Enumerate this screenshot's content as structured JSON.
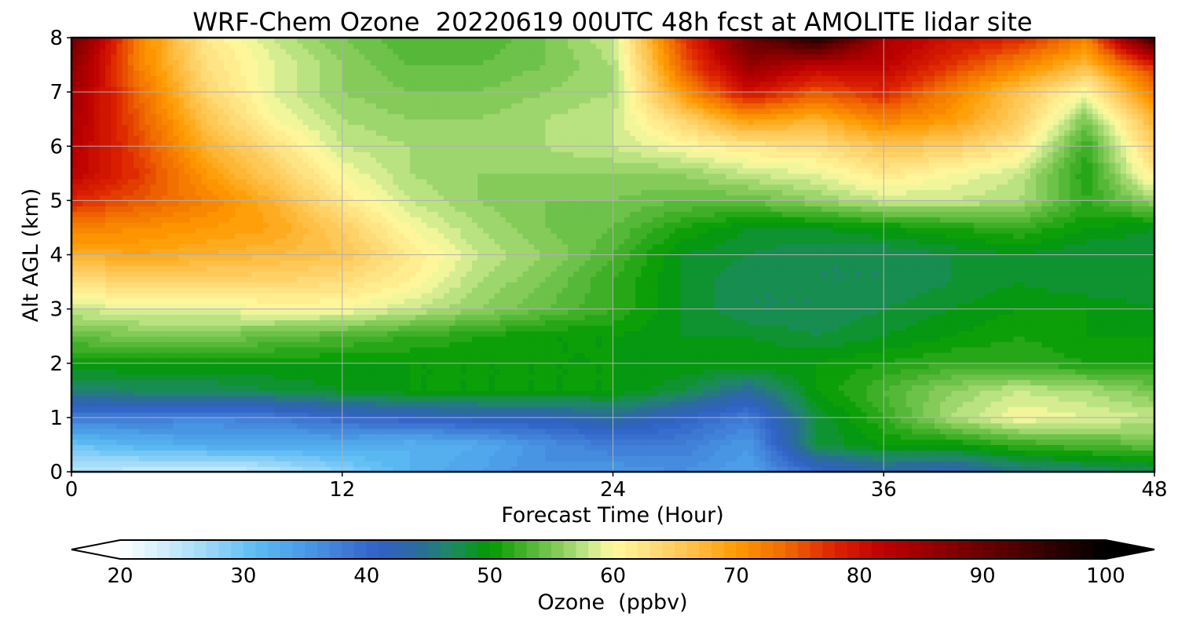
{
  "chart_data": {
    "type": "heatmap",
    "subtype": "filled-contour",
    "title": "WRF-Chem Ozone  20220619 00UTC 48h fcst at AMOLITE lidar site",
    "xlabel": "Forecast Time (Hour)",
    "ylabel": "Alt AGL (km)",
    "xlim": [
      0,
      48
    ],
    "ylim": [
      0,
      8
    ],
    "xticks": [
      0,
      12,
      24,
      36,
      48
    ],
    "yticks": [
      0,
      1,
      2,
      3,
      4,
      5,
      6,
      7,
      8
    ],
    "grid": true,
    "colorbar": {
      "label": "Ozone  (ppbv)",
      "orientation": "horizontal",
      "placement": "bottom",
      "extend": "both",
      "min": 20,
      "max": 100,
      "ticks": [
        20,
        30,
        40,
        50,
        60,
        70,
        80,
        90,
        100
      ],
      "color_stops": [
        {
          "v": 20,
          "c": "#ffffff"
        },
        {
          "v": 24,
          "c": "#c9ecfb"
        },
        {
          "v": 28,
          "c": "#8fd2f6"
        },
        {
          "v": 31,
          "c": "#5bbcf4"
        },
        {
          "v": 35,
          "c": "#4a9ae6"
        },
        {
          "v": 38,
          "c": "#3f7cd6"
        },
        {
          "v": 41,
          "c": "#3161c6"
        },
        {
          "v": 44,
          "c": "#2b6aa0"
        },
        {
          "v": 47,
          "c": "#1d8a60"
        },
        {
          "v": 50,
          "c": "#009b00"
        },
        {
          "v": 53,
          "c": "#4bb330"
        },
        {
          "v": 56,
          "c": "#8fd062"
        },
        {
          "v": 58,
          "c": "#c7e88a"
        },
        {
          "v": 60,
          "c": "#fffaa0"
        },
        {
          "v": 63,
          "c": "#ffe080"
        },
        {
          "v": 67,
          "c": "#ffbb40"
        },
        {
          "v": 70,
          "c": "#ff9a00"
        },
        {
          "v": 74,
          "c": "#f06a00"
        },
        {
          "v": 78,
          "c": "#dd2200"
        },
        {
          "v": 82,
          "c": "#bd0000"
        },
        {
          "v": 87,
          "c": "#8a0000"
        },
        {
          "v": 92,
          "c": "#550000"
        },
        {
          "v": 97,
          "c": "#200000"
        },
        {
          "v": 100,
          "c": "#000000"
        }
      ]
    },
    "x": [
      0,
      3,
      6,
      9,
      12,
      15,
      18,
      21,
      24,
      27,
      30,
      33,
      36,
      39,
      42,
      45,
      48
    ],
    "y": [
      0,
      0.5,
      1,
      1.5,
      2,
      2.5,
      3,
      3.5,
      4,
      4.5,
      5,
      5.5,
      6,
      6.5,
      7,
      7.5,
      8
    ],
    "z": [
      [
        25,
        24,
        23,
        25,
        28,
        32,
        34,
        36,
        35,
        36,
        34,
        40,
        43,
        42,
        45,
        46,
        47
      ],
      [
        30,
        32,
        33,
        33,
        33,
        32,
        33,
        36,
        38,
        38,
        35,
        48,
        50,
        50,
        52,
        53,
        54
      ],
      [
        38,
        38,
        37,
        38,
        40,
        41,
        42,
        42,
        44,
        41,
        38,
        48,
        52,
        57,
        60,
        59,
        58
      ],
      [
        46,
        47,
        47,
        48,
        49,
        50,
        50,
        50,
        50,
        48,
        44,
        50,
        53,
        56,
        58,
        57,
        55
      ],
      [
        50,
        50,
        50,
        50,
        50,
        50,
        50,
        50,
        50,
        50,
        50,
        50,
        51,
        52,
        52,
        51,
        51
      ],
      [
        54,
        55,
        55,
        54,
        53,
        52,
        51,
        50,
        50,
        49,
        49,
        48,
        49,
        50,
        51,
        50,
        50
      ],
      [
        58,
        59,
        59,
        60,
        60,
        58,
        56,
        54,
        52,
        49,
        47,
        47,
        48,
        49,
        50,
        50,
        49
      ],
      [
        63,
        64,
        64,
        64,
        63,
        61,
        57,
        55,
        52,
        49,
        47,
        47,
        47,
        48,
        49,
        48,
        48
      ],
      [
        68,
        69,
        68,
        67,
        66,
        62,
        58,
        56,
        53,
        49,
        48,
        47,
        47,
        48,
        49,
        48,
        48
      ],
      [
        72,
        71,
        70,
        69,
        65,
        60,
        57,
        55,
        54,
        51,
        49,
        49,
        50,
        51,
        52,
        50,
        49
      ],
      [
        78,
        75,
        72,
        68,
        62,
        58,
        56,
        55,
        55,
        54,
        54,
        56,
        58,
        58,
        57,
        52,
        56
      ],
      [
        82,
        77,
        70,
        65,
        60,
        57,
        56,
        56,
        56,
        56,
        58,
        59,
        62,
        60,
        58,
        51,
        62
      ],
      [
        83,
        76,
        68,
        63,
        58,
        57,
        56,
        57,
        58,
        60,
        62,
        63,
        66,
        65,
        62,
        52,
        65
      ],
      [
        84,
        75,
        66,
        60,
        57,
        56,
        56,
        57,
        58,
        64,
        70,
        68,
        72,
        70,
        65,
        55,
        68
      ],
      [
        85,
        74,
        64,
        59,
        56,
        55,
        55,
        56,
        57,
        70,
        80,
        75,
        78,
        72,
        66,
        60,
        72
      ],
      [
        87,
        72,
        63,
        59,
        56,
        54,
        54,
        55,
        57,
        74,
        86,
        82,
        82,
        77,
        72,
        67,
        78
      ],
      [
        90,
        72,
        62,
        58,
        55,
        53,
        53,
        55,
        58,
        76,
        90,
        97,
        84,
        80,
        78,
        72,
        95
      ]
    ]
  }
}
